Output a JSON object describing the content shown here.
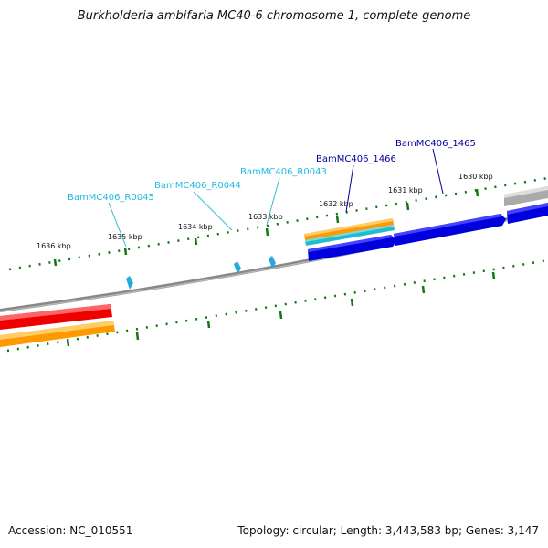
{
  "title": "Burkholderia ambifaria MC40-6 chromosome 1, complete genome",
  "footer": {
    "accession": "Accession: NC_010551",
    "summary": "Topology: circular; Length: 3,443,583 bp; Genes: 3,147"
  },
  "ticks": [
    "1636 kbp",
    "1635 kbp",
    "1634 kbp",
    "1633 kbp",
    "1632 kbp",
    "1631 kbp",
    "1630 kbp"
  ],
  "features": {
    "rna": [
      "BamMC406_R0045",
      "BamMC406_R0044",
      "BamMC406_R0043"
    ],
    "genes": [
      "BamMC406_1466",
      "BamMC406_1465"
    ]
  },
  "colors": {
    "cds": "#0000e0",
    "gene_orange": "#ff9900",
    "gene_red": "#ee0000",
    "rna": "#33ccdd",
    "rna_label": "#22bbdd",
    "gene_label": "#000099",
    "tick": "#117711",
    "backbone": "#888888"
  }
}
